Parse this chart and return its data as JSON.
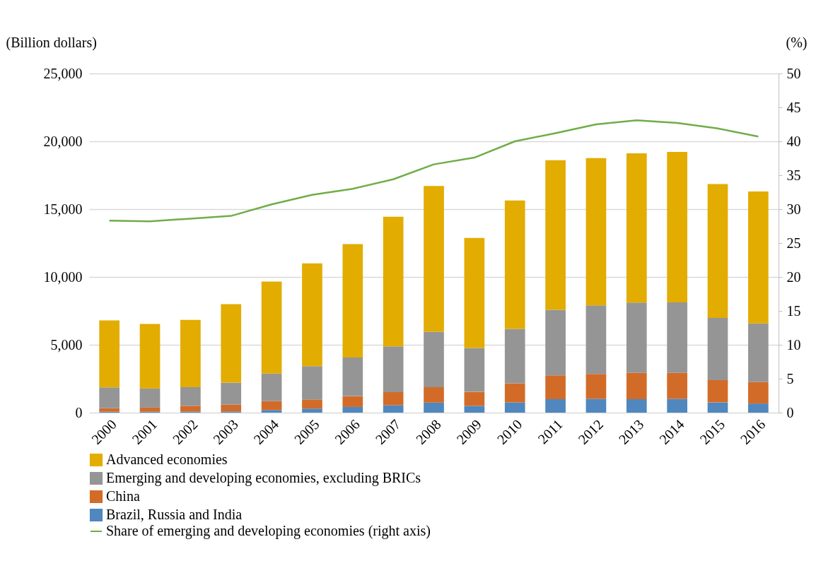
{
  "chart_data": {
    "type": "bar",
    "stacked": true,
    "categories": [
      "2000",
      "2001",
      "2002",
      "2003",
      "2004",
      "2005",
      "2006",
      "2007",
      "2008",
      "2009",
      "2010",
      "2011",
      "2012",
      "2013",
      "2014",
      "2015",
      "2016"
    ],
    "ylabel": "(Billion dollars)",
    "y2label": "(%)",
    "ylim": [
      0,
      25000
    ],
    "yticks": [
      0,
      {
        "value": 5000,
        "label": "5,000"
      },
      {
        "value": 10000,
        "label": "10,000"
      },
      {
        "value": 15000,
        "label": "15,000"
      },
      {
        "value": 20000,
        "label": "20,000"
      },
      {
        "value": 25000,
        "label": "25,000"
      }
    ],
    "y2lim": [
      0,
      50
    ],
    "y2ticks": [
      0,
      5,
      10,
      15,
      20,
      25,
      30,
      35,
      40,
      45,
      50
    ],
    "grid": "y",
    "legend": "bottom",
    "series": [
      {
        "name": "Brazil, Russia and India",
        "color": "#4f87be",
        "values": [
          70,
          70,
          80,
          90,
          200,
          300,
          420,
          540,
          740,
          500,
          750,
          990,
          1020,
          990,
          1020,
          750,
          670
        ]
      },
      {
        "name": "China",
        "color": "#d36b28",
        "values": [
          260,
          300,
          420,
          500,
          640,
          670,
          800,
          970,
          1140,
          1030,
          1410,
          1760,
          1830,
          1940,
          1910,
          1650,
          1580
        ]
      },
      {
        "name": "Emerging and developing economies, excluding BRICs",
        "color": "#959595",
        "values": [
          1530,
          1420,
          1380,
          1620,
          2040,
          2450,
          2840,
          3370,
          4090,
          3230,
          4010,
          4830,
          5060,
          5180,
          5200,
          4580,
          4320
        ]
      },
      {
        "name": "Advanced economies",
        "color": "#e2ac00",
        "values": [
          4940,
          4750,
          4960,
          5790,
          6780,
          7580,
          8360,
          9560,
          10730,
          8120,
          9470,
          11030,
          10850,
          11000,
          11090,
          9870,
          9730
        ]
      },
      {
        "name": "Share of emerging and developing economies (right axis)",
        "type": "line",
        "axis": "y2",
        "color": "#70ad47",
        "values": [
          28.3,
          28.2,
          28.6,
          29.0,
          30.7,
          32.1,
          33.0,
          34.4,
          36.6,
          37.6,
          40.0,
          41.2,
          42.5,
          43.1,
          42.7,
          41.9,
          40.7
        ]
      }
    ]
  }
}
